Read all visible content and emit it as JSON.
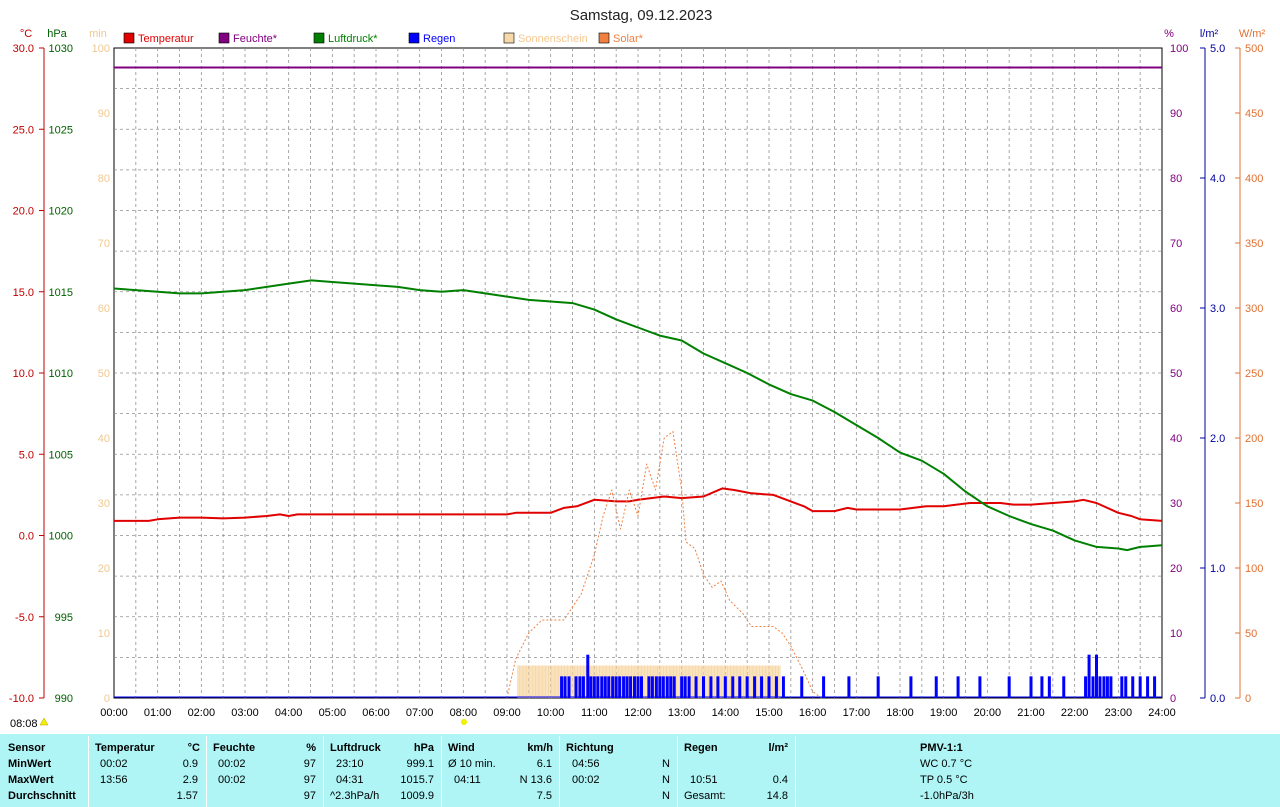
{
  "title": "Samstag, 09.12.2023",
  "chart_data": {
    "type": "line",
    "title": "Samstag, 09.12.2023",
    "x_ticks": [
      "00:00",
      "01:00",
      "02:00",
      "03:00",
      "04:00",
      "05:00",
      "06:00",
      "07:00",
      "08:00",
      "09:00",
      "10:00",
      "11:00",
      "12:00",
      "13:00",
      "14:00",
      "15:00",
      "16:00",
      "17:00",
      "18:00",
      "19:00",
      "20:00",
      "21:00",
      "22:00",
      "23:00",
      "24:00"
    ],
    "x_range_hours": [
      0,
      24
    ],
    "grid": true,
    "legend_position": "top",
    "axes": {
      "temperature": {
        "unit": "°C",
        "range": [
          -10,
          30
        ],
        "ticks": [
          "30.0",
          "25.0",
          "20.0",
          "15.0",
          "10.0",
          "5.0",
          "0.0",
          "-5.0",
          "-10.0"
        ],
        "color": "#d00000"
      },
      "pressure": {
        "unit": "hPa",
        "range": [
          990,
          1030
        ],
        "ticks": [
          "1030",
          "1025",
          "1020",
          "1015",
          "1010",
          "1005",
          "1000",
          "995",
          "990"
        ],
        "color": "#008000"
      },
      "sunshine": {
        "unit": "min",
        "range": [
          0,
          100
        ],
        "ticks": [
          "100",
          "90",
          "80",
          "70",
          "60",
          "50",
          "40",
          "30",
          "20",
          "10",
          "0"
        ],
        "color": "#f0d0a0"
      },
      "humidity": {
        "unit": "%",
        "range": [
          0,
          100
        ],
        "ticks": [
          "100",
          "90",
          "80",
          "70",
          "60",
          "50",
          "40",
          "30",
          "20",
          "10",
          "0"
        ],
        "color": "#800080"
      },
      "rain": {
        "unit": "l/m²",
        "range": [
          0,
          5
        ],
        "ticks": [
          "5.0",
          "4.0",
          "3.0",
          "2.0",
          "1.0",
          "0.0"
        ],
        "color": "#0000c0"
      },
      "solar": {
        "unit": "W/m²",
        "range": [
          0,
          500
        ],
        "ticks": [
          "500",
          "450",
          "400",
          "350",
          "300",
          "250",
          "200",
          "150",
          "100",
          "50",
          "0"
        ],
        "color": "#e07040"
      }
    },
    "legend": [
      {
        "label": "Temperatur",
        "color": "#e00000"
      },
      {
        "label": "Feuchte*",
        "color": "#800080"
      },
      {
        "label": "Luftdruck*",
        "color": "#008000"
      },
      {
        "label": "Regen",
        "color": "#0000ff"
      },
      {
        "label": "Sonnenschein",
        "color": "#f7d8a8"
      },
      {
        "label": "Solar*",
        "color": "#f08040"
      }
    ],
    "series": [
      {
        "name": "Temperatur",
        "axis": "temperature",
        "color": "#e00000",
        "points": [
          [
            0,
            0.9
          ],
          [
            0.8,
            0.9
          ],
          [
            1,
            1.0
          ],
          [
            1.5,
            1.1
          ],
          [
            2,
            1.1
          ],
          [
            2.5,
            1.05
          ],
          [
            3,
            1.1
          ],
          [
            3.5,
            1.2
          ],
          [
            3.8,
            1.3
          ],
          [
            4,
            1.2
          ],
          [
            4.2,
            1.3
          ],
          [
            5,
            1.3
          ],
          [
            6,
            1.3
          ],
          [
            7,
            1.3
          ],
          [
            8,
            1.3
          ],
          [
            9,
            1.3
          ],
          [
            9.2,
            1.4
          ],
          [
            9.6,
            1.4
          ],
          [
            10,
            1.4
          ],
          [
            10.3,
            1.7
          ],
          [
            10.6,
            1.8
          ],
          [
            11,
            2.2
          ],
          [
            11.5,
            2.1
          ],
          [
            11.8,
            2.1
          ],
          [
            12,
            2.2
          ],
          [
            12.3,
            2.3
          ],
          [
            12.6,
            2.4
          ],
          [
            13,
            2.3
          ],
          [
            13.5,
            2.4
          ],
          [
            13.93,
            2.9
          ],
          [
            14.2,
            2.8
          ],
          [
            14.6,
            2.6
          ],
          [
            15.1,
            2.5
          ],
          [
            15.4,
            2.2
          ],
          [
            15.8,
            1.8
          ],
          [
            16,
            1.5
          ],
          [
            16.5,
            1.5
          ],
          [
            16.8,
            1.7
          ],
          [
            17,
            1.6
          ],
          [
            17.5,
            1.6
          ],
          [
            18,
            1.6
          ],
          [
            18.3,
            1.7
          ],
          [
            18.6,
            1.8
          ],
          [
            19,
            1.8
          ],
          [
            19.3,
            1.9
          ],
          [
            19.6,
            2.0
          ],
          [
            20,
            2.0
          ],
          [
            20.3,
            2.0
          ],
          [
            20.6,
            1.9
          ],
          [
            21,
            1.9
          ],
          [
            21.5,
            2.0
          ],
          [
            22,
            2.1
          ],
          [
            22.2,
            2.2
          ],
          [
            22.5,
            2.0
          ],
          [
            23,
            1.4
          ],
          [
            23.3,
            1.2
          ],
          [
            23.5,
            1.0
          ],
          [
            24,
            0.9
          ]
        ]
      },
      {
        "name": "Feuchte*",
        "axis": "humidity",
        "color": "#800080",
        "points": [
          [
            0,
            97
          ],
          [
            24,
            97
          ]
        ]
      },
      {
        "name": "Luftdruck*",
        "axis": "pressure",
        "color": "#008000",
        "points": [
          [
            0,
            1015.2
          ],
          [
            0.5,
            1015.1
          ],
          [
            1,
            1015.0
          ],
          [
            1.5,
            1014.9
          ],
          [
            2,
            1014.9
          ],
          [
            2.5,
            1015.0
          ],
          [
            3,
            1015.1
          ],
          [
            3.5,
            1015.3
          ],
          [
            4,
            1015.5
          ],
          [
            4.52,
            1015.7
          ],
          [
            5,
            1015.6
          ],
          [
            5.5,
            1015.5
          ],
          [
            6,
            1015.4
          ],
          [
            6.5,
            1015.3
          ],
          [
            7,
            1015.1
          ],
          [
            7.5,
            1015.0
          ],
          [
            8,
            1015.1
          ],
          [
            8.5,
            1014.9
          ],
          [
            9,
            1014.7
          ],
          [
            9.5,
            1014.5
          ],
          [
            10,
            1014.4
          ],
          [
            10.5,
            1014.3
          ],
          [
            11,
            1013.9
          ],
          [
            11.5,
            1013.3
          ],
          [
            12,
            1012.8
          ],
          [
            12.5,
            1012.3
          ],
          [
            13,
            1012.0
          ],
          [
            13.5,
            1011.2
          ],
          [
            14,
            1010.6
          ],
          [
            14.5,
            1010.0
          ],
          [
            15,
            1009.3
          ],
          [
            15.5,
            1008.7
          ],
          [
            16,
            1008.3
          ],
          [
            16.5,
            1007.6
          ],
          [
            17,
            1006.8
          ],
          [
            17.5,
            1006.0
          ],
          [
            18,
            1005.1
          ],
          [
            18.5,
            1004.6
          ],
          [
            19,
            1003.8
          ],
          [
            19.5,
            1002.7
          ],
          [
            20,
            1001.8
          ],
          [
            20.5,
            1001.2
          ],
          [
            21,
            1000.7
          ],
          [
            21.5,
            1000.3
          ],
          [
            22,
            999.7
          ],
          [
            22.5,
            999.3
          ],
          [
            23,
            999.2
          ],
          [
            23.2,
            999.1
          ],
          [
            23.5,
            999.3
          ],
          [
            24,
            999.4
          ]
        ]
      },
      {
        "name": "Solar*",
        "axis": "solar",
        "color": "#f08040",
        "dashed": true,
        "points": [
          [
            9,
            0
          ],
          [
            9.2,
            30
          ],
          [
            9.5,
            50
          ],
          [
            9.8,
            60
          ],
          [
            10,
            60
          ],
          [
            10.3,
            60
          ],
          [
            10.5,
            70
          ],
          [
            10.7,
            80
          ],
          [
            11,
            110
          ],
          [
            11.2,
            140
          ],
          [
            11.4,
            160
          ],
          [
            11.6,
            130
          ],
          [
            11.8,
            160
          ],
          [
            12,
            140
          ],
          [
            12.2,
            180
          ],
          [
            12.4,
            160
          ],
          [
            12.6,
            200
          ],
          [
            12.8,
            205
          ],
          [
            13,
            160
          ],
          [
            13.1,
            120
          ],
          [
            13.3,
            115
          ],
          [
            13.5,
            95
          ],
          [
            13.7,
            85
          ],
          [
            13.9,
            90
          ],
          [
            14.1,
            75
          ],
          [
            14.4,
            65
          ],
          [
            14.6,
            55
          ],
          [
            14.9,
            55
          ],
          [
            15.1,
            55
          ],
          [
            15.3,
            50
          ],
          [
            15.5,
            40
          ],
          [
            15.8,
            20
          ],
          [
            16,
            5
          ],
          [
            16.2,
            0
          ]
        ]
      },
      {
        "name": "Sonnenschein",
        "axis": "sunshine",
        "color": "#f7d8a8",
        "type": "bar",
        "from": 9.25,
        "to": 15.25,
        "value": 5
      },
      {
        "name": "Regen",
        "axis": "rain",
        "color": "#0000ff",
        "type": "bar",
        "points": [
          [
            10.25,
            0.2
          ],
          [
            10.33,
            0.2
          ],
          [
            10.42,
            0.2
          ],
          [
            10.58,
            0.2
          ],
          [
            10.67,
            0.2
          ],
          [
            10.75,
            0.2
          ],
          [
            10.85,
            0.4
          ],
          [
            10.92,
            0.2
          ],
          [
            11.0,
            0.2
          ],
          [
            11.08,
            0.2
          ],
          [
            11.17,
            0.2
          ],
          [
            11.25,
            0.2
          ],
          [
            11.33,
            0.2
          ],
          [
            11.42,
            0.2
          ],
          [
            11.5,
            0.2
          ],
          [
            11.58,
            0.2
          ],
          [
            11.67,
            0.2
          ],
          [
            11.75,
            0.2
          ],
          [
            11.83,
            0.2
          ],
          [
            11.92,
            0.2
          ],
          [
            12.0,
            0.2
          ],
          [
            12.08,
            0.2
          ],
          [
            12.25,
            0.2
          ],
          [
            12.33,
            0.2
          ],
          [
            12.42,
            0.2
          ],
          [
            12.5,
            0.2
          ],
          [
            12.58,
            0.2
          ],
          [
            12.67,
            0.2
          ],
          [
            12.75,
            0.2
          ],
          [
            12.83,
            0.2
          ],
          [
            13.0,
            0.2
          ],
          [
            13.08,
            0.2
          ],
          [
            13.17,
            0.2
          ],
          [
            13.33,
            0.2
          ],
          [
            13.5,
            0.2
          ],
          [
            13.67,
            0.2
          ],
          [
            13.83,
            0.2
          ],
          [
            14.0,
            0.2
          ],
          [
            14.17,
            0.2
          ],
          [
            14.33,
            0.2
          ],
          [
            14.5,
            0.2
          ],
          [
            14.67,
            0.2
          ],
          [
            14.83,
            0.2
          ],
          [
            15.0,
            0.2
          ],
          [
            15.17,
            0.2
          ],
          [
            15.33,
            0.2
          ],
          [
            15.75,
            0.2
          ],
          [
            16.25,
            0.2
          ],
          [
            16.83,
            0.2
          ],
          [
            17.5,
            0.2
          ],
          [
            18.25,
            0.2
          ],
          [
            18.83,
            0.2
          ],
          [
            19.33,
            0.2
          ],
          [
            19.83,
            0.2
          ],
          [
            20.5,
            0.2
          ],
          [
            21.0,
            0.2
          ],
          [
            21.25,
            0.2
          ],
          [
            21.42,
            0.2
          ],
          [
            21.75,
            0.2
          ],
          [
            22.25,
            0.2
          ],
          [
            22.33,
            0.4
          ],
          [
            22.42,
            0.2
          ],
          [
            22.5,
            0.4
          ],
          [
            22.58,
            0.2
          ],
          [
            22.67,
            0.2
          ],
          [
            22.75,
            0.2
          ],
          [
            22.83,
            0.2
          ],
          [
            23.08,
            0.2
          ],
          [
            23.17,
            0.2
          ],
          [
            23.33,
            0.2
          ],
          [
            23.5,
            0.2
          ],
          [
            23.67,
            0.2
          ],
          [
            23.83,
            0.2
          ]
        ]
      }
    ]
  },
  "legend_labels": [
    "Temperatur",
    "Feuchte*",
    "Luftdruck*",
    "Regen",
    "Sonnenschein",
    "Solar*"
  ],
  "axis_units": {
    "temp": "°C",
    "pressure": "hPa",
    "sunshine": "min",
    "humidity": "%",
    "rain": "l/m²",
    "solar": "W/m²"
  },
  "marker_time": "08:08",
  "stats": {
    "row_labels": [
      "Sensor",
      "MinWert",
      "MaxWert",
      "Durchschnitt"
    ],
    "temperatur": {
      "header": "Temperatur",
      "unit": "°C",
      "min_time": "00:02",
      "min": "0.9",
      "max_time": "13:56",
      "max": "2.9",
      "avg": "1.57"
    },
    "feuchte": {
      "header": "Feuchte",
      "unit": "%",
      "min_time": "00:02",
      "min": "97",
      "max_time": "00:02",
      "max": "97",
      "avg": "97"
    },
    "luftdruck": {
      "header": "Luftdruck",
      "unit": "hPa",
      "min_time": "23:10",
      "min": "999.1",
      "max_time": "04:31",
      "max": "1015.7",
      "avg_label": "^2.3hPa/h",
      "avg": "1009.9"
    },
    "wind": {
      "header": "Wind",
      "unit": "km/h",
      "row1_label": "Ø 10 min.",
      "row1": "6.1",
      "row2_time": "04:11",
      "row2": "N 13.6",
      "avg": "7.5"
    },
    "richtung": {
      "header": "Richtung",
      "row1_time": "04:56",
      "row1": "N",
      "row2_time": "00:02",
      "row2": "N",
      "avg": "N"
    },
    "regen": {
      "header": "Regen",
      "unit": "l/m²",
      "row2_time": "10:51",
      "row2": "0.4",
      "total_label": "Gesamt:",
      "total": "14.8"
    },
    "pmv": {
      "header": "PMV-1:1",
      "wc": "WC 0.7 °C",
      "tp": "TP 0.5 °C",
      "trend": "-1.0hPa/3h"
    }
  }
}
